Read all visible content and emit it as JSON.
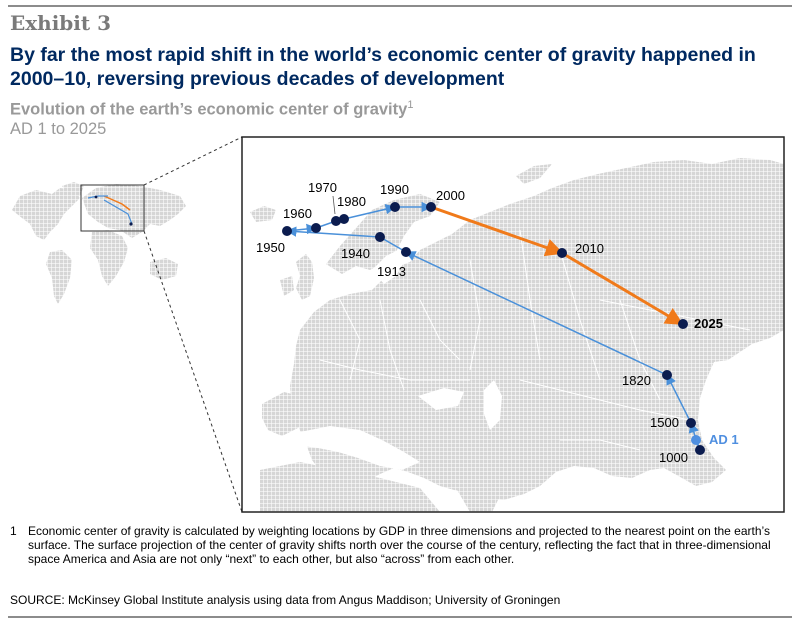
{
  "header": {
    "exhibit": "Exhibit 3",
    "title": "By far the most rapid shift in the world’s economic center of gravity happened in 2000–10, reversing previous decades of development",
    "subtitle": "Evolution of the earth’s economic center of gravity",
    "subtitle_note_marker": "1",
    "range": "AD 1 to 2025"
  },
  "colors": {
    "historic": "#4a90d9",
    "recent": "#f07a1a",
    "point": "#0b1c4f",
    "ad1": "#4f8fe0",
    "land": "#d9d9d9",
    "title": "#002960"
  },
  "map": {
    "points": [
      {
        "label": "AD 1",
        "year": 1
      },
      {
        "label": "1000",
        "year": 1000
      },
      {
        "label": "1500",
        "year": 1500
      },
      {
        "label": "1820",
        "year": 1820
      },
      {
        "label": "1913",
        "year": 1913
      },
      {
        "label": "1940",
        "year": 1940
      },
      {
        "label": "1950",
        "year": 1950
      },
      {
        "label": "1960",
        "year": 1960
      },
      {
        "label": "1970",
        "year": 1970
      },
      {
        "label": "1980",
        "year": 1980
      },
      {
        "label": "1990",
        "year": 1990
      },
      {
        "label": "2000",
        "year": 2000
      },
      {
        "label": "2010",
        "year": 2010
      },
      {
        "label": "2025",
        "year": 2025
      }
    ]
  },
  "footnote": {
    "marker": "1",
    "text": "Economic center of gravity is calculated by weighting locations by GDP in three dimensions and projected to the nearest point on the earth’s surface. The surface projection of the center of gravity shifts north over the course of the century, reflecting the fact that in three-dimensional space America and Asia are not only “next” to each other, but also “across” from each other."
  },
  "source": "SOURCE: McKinsey Global Institute analysis using data from Angus Maddison; University of Groningen"
}
